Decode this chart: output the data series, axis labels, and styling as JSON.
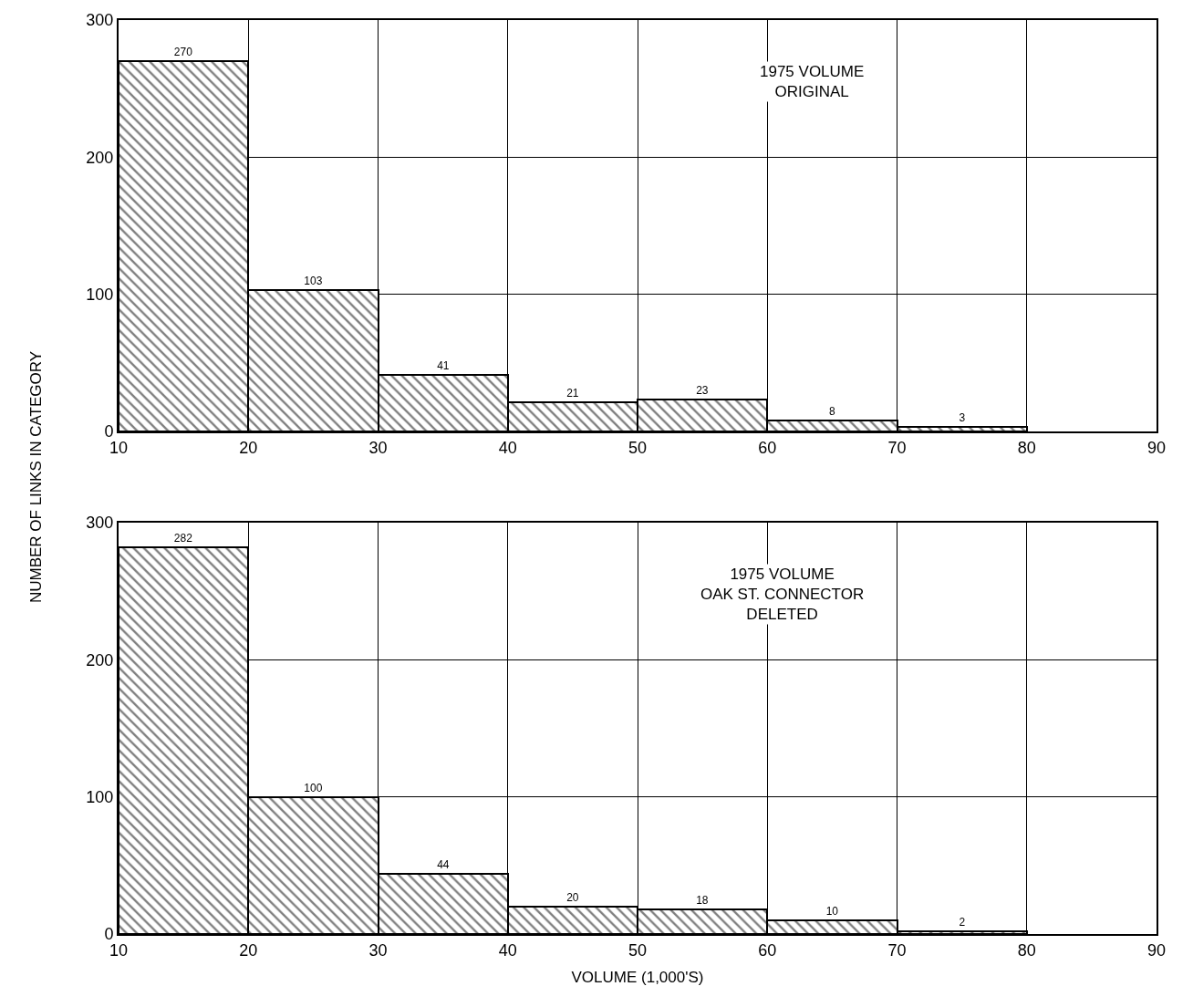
{
  "chart_data": [
    {
      "type": "histogram",
      "bins": [
        10,
        20,
        30,
        40,
        50,
        60,
        70,
        80
      ],
      "values": [
        270,
        103,
        41,
        21,
        23,
        8,
        3
      ],
      "color": "#000000",
      "data_labels": true,
      "xlim": [
        10,
        90
      ],
      "xticks": [
        10,
        20,
        30,
        40,
        50,
        60,
        70,
        80,
        90
      ],
      "ylim": [
        0,
        300
      ],
      "yticks": [
        0,
        100,
        200,
        300
      ],
      "grid": true,
      "ylabel": "NUMBER OF LINKS IN CATEGORY",
      "annotations": [
        "1975 VOLUME\nORIGINAL"
      ]
    },
    {
      "type": "histogram",
      "bins": [
        10,
        20,
        30,
        40,
        50,
        60,
        70,
        80
      ],
      "values": [
        282,
        100,
        44,
        20,
        18,
        10,
        2
      ],
      "color": "#000000",
      "data_labels": true,
      "xlim": [
        10,
        90
      ],
      "xticks": [
        10,
        20,
        30,
        40,
        50,
        60,
        70,
        80,
        90
      ],
      "ylim": [
        0,
        300
      ],
      "yticks": [
        0,
        100,
        200,
        300
      ],
      "grid": true,
      "xlabel": "VOLUME (1,000'S)",
      "annotations": [
        "1975 VOLUME\nOAK ST. CONNECTOR\nDELETED"
      ]
    }
  ]
}
